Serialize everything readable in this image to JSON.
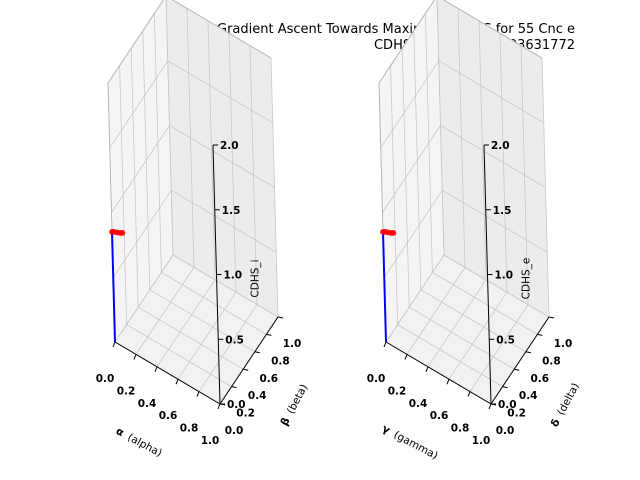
{
  "figure": {
    "title_line1": "Gradient Ascent Towards Maxima of CDHS for 55 Cnc e",
    "title_line2": "CDHS = 1.0983583703631772"
  },
  "chart_data": [
    {
      "type": "scatter3d",
      "name": "left",
      "x_label_symbol": "α",
      "x_label_text": "(alpha)",
      "y_label_symbol": "β",
      "y_label_text": "(beta)",
      "z_label": "CDHS_i",
      "x_ticks": [
        "0.0",
        "0.2",
        "0.4",
        "0.6",
        "0.8",
        "1.0"
      ],
      "y_ticks": [
        "0.0",
        "0.2",
        "0.4",
        "0.6",
        "0.8",
        "1.0"
      ],
      "z_ticks": [
        "0.0",
        "0.5",
        "1.0",
        "1.5",
        "2.0"
      ],
      "xlim": [
        0,
        1
      ],
      "ylim": [
        0,
        1
      ],
      "zlim": [
        0,
        2
      ],
      "grid": true,
      "line_color": "#0000ff",
      "marker_color": "#ff0000",
      "path": [
        {
          "x": 0.0,
          "y": 0.0,
          "z": 0.0
        },
        {
          "x": 0.0,
          "y": 0.0,
          "z": 0.85
        },
        {
          "x": 0.02,
          "y": 0.0,
          "z": 0.86
        },
        {
          "x": 0.05,
          "y": 0.0,
          "z": 0.87
        },
        {
          "x": 0.08,
          "y": 0.0,
          "z": 0.88
        },
        {
          "x": 0.1,
          "y": 0.0,
          "z": 0.89
        }
      ],
      "points": [
        {
          "x": 0.0,
          "y": 0.0,
          "z": 0.85
        },
        {
          "x": 0.02,
          "y": 0.0,
          "z": 0.86
        },
        {
          "x": 0.05,
          "y": 0.0,
          "z": 0.87
        },
        {
          "x": 0.08,
          "y": 0.0,
          "z": 0.88
        },
        {
          "x": 0.1,
          "y": 0.0,
          "z": 0.89
        }
      ]
    },
    {
      "type": "scatter3d",
      "name": "right",
      "x_label_symbol": "γ",
      "x_label_text": "(gamma)",
      "y_label_symbol": "δ",
      "y_label_text": "(delta)",
      "z_label": "CDHS_e",
      "x_ticks": [
        "0.0",
        "0.2",
        "0.4",
        "0.6",
        "0.8",
        "1.0"
      ],
      "y_ticks": [
        "0.0",
        "0.2",
        "0.4",
        "0.6",
        "0.8",
        "1.0"
      ],
      "z_ticks": [
        "0.0",
        "0.5",
        "1.0",
        "1.5",
        "2.0"
      ],
      "xlim": [
        0,
        1
      ],
      "ylim": [
        0,
        1
      ],
      "zlim": [
        0,
        2
      ],
      "grid": true,
      "line_color": "#0000ff",
      "marker_color": "#ff0000",
      "path": [
        {
          "x": 0.0,
          "y": 0.0,
          "z": 0.0
        },
        {
          "x": 0.0,
          "y": 0.0,
          "z": 0.85
        },
        {
          "x": 0.02,
          "y": 0.0,
          "z": 0.86
        },
        {
          "x": 0.05,
          "y": 0.0,
          "z": 0.87
        },
        {
          "x": 0.08,
          "y": 0.0,
          "z": 0.88
        },
        {
          "x": 0.1,
          "y": 0.0,
          "z": 0.89
        }
      ],
      "points": [
        {
          "x": 0.0,
          "y": 0.0,
          "z": 0.85
        },
        {
          "x": 0.02,
          "y": 0.0,
          "z": 0.86
        },
        {
          "x": 0.05,
          "y": 0.0,
          "z": 0.87
        },
        {
          "x": 0.08,
          "y": 0.0,
          "z": 0.88
        },
        {
          "x": 0.1,
          "y": 0.0,
          "z": 0.89
        }
      ]
    }
  ]
}
